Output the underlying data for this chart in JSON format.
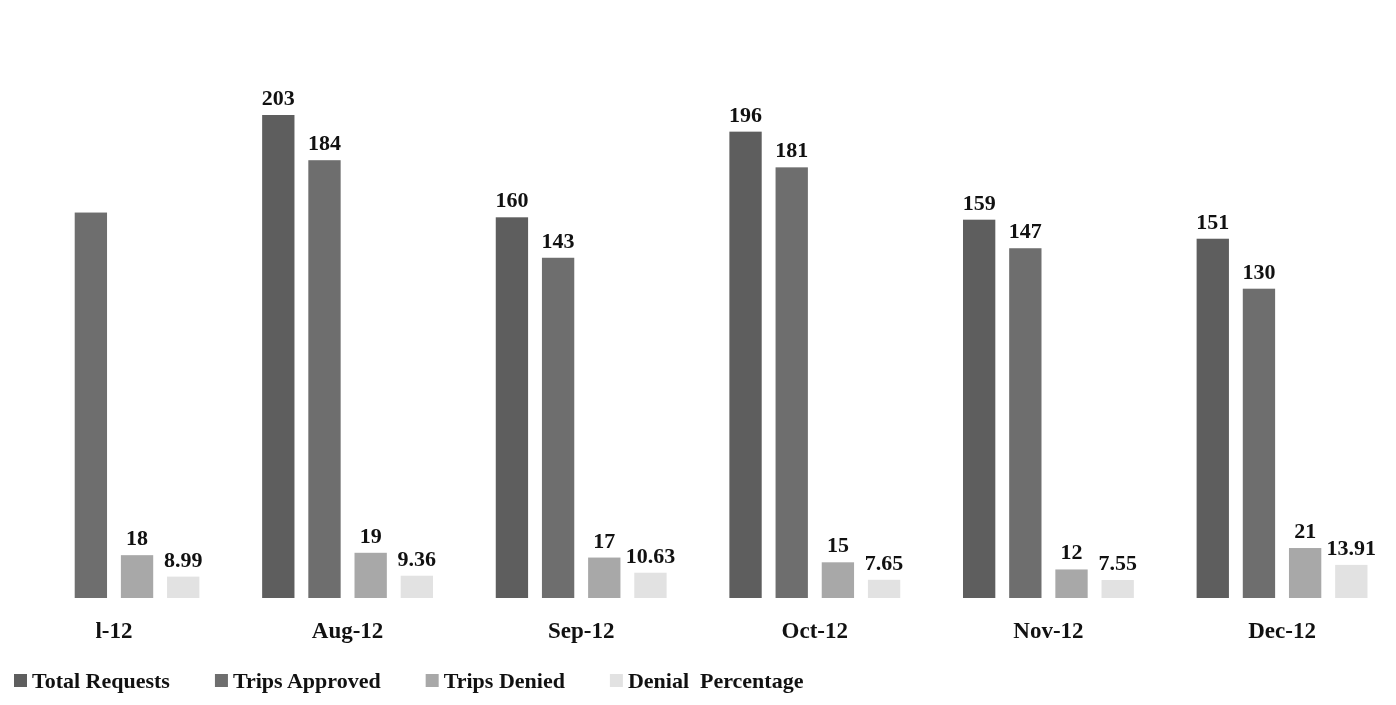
{
  "chart_data": {
    "type": "bar",
    "categories": [
      "l-12",
      "Aug-12",
      "Sep-12",
      "Oct-12",
      "Nov-12",
      "Dec-12"
    ],
    "series": [
      {
        "name": "Total Requests",
        "color": "#5e5e5e",
        "values": [
          null,
          203,
          160,
          196,
          159,
          151
        ],
        "value_labels": [
          null,
          "203",
          "160",
          "196",
          "159",
          "151"
        ]
      },
      {
        "name": "Trips Approved",
        "color": "#6e6e6e",
        "values": [
          162,
          184,
          143,
          181,
          147,
          130
        ],
        "value_labels": [
          null,
          "184",
          "143",
          "181",
          "147",
          "130"
        ]
      },
      {
        "name": "Trips Denied",
        "color": "#a8a8a8",
        "values": [
          18,
          19,
          17,
          15,
          12,
          21
        ],
        "value_labels": [
          "18",
          "19",
          "17",
          "15",
          "12",
          "21"
        ]
      },
      {
        "name": "Denial  Percentage",
        "color": "#e2e2e2",
        "values": [
          8.99,
          9.36,
          10.63,
          7.65,
          7.55,
          13.91
        ],
        "value_labels": [
          "8.99",
          "9.36",
          "10.63",
          "7.65",
          "7.55",
          "13.91"
        ]
      }
    ],
    "legend": "bottom"
  }
}
